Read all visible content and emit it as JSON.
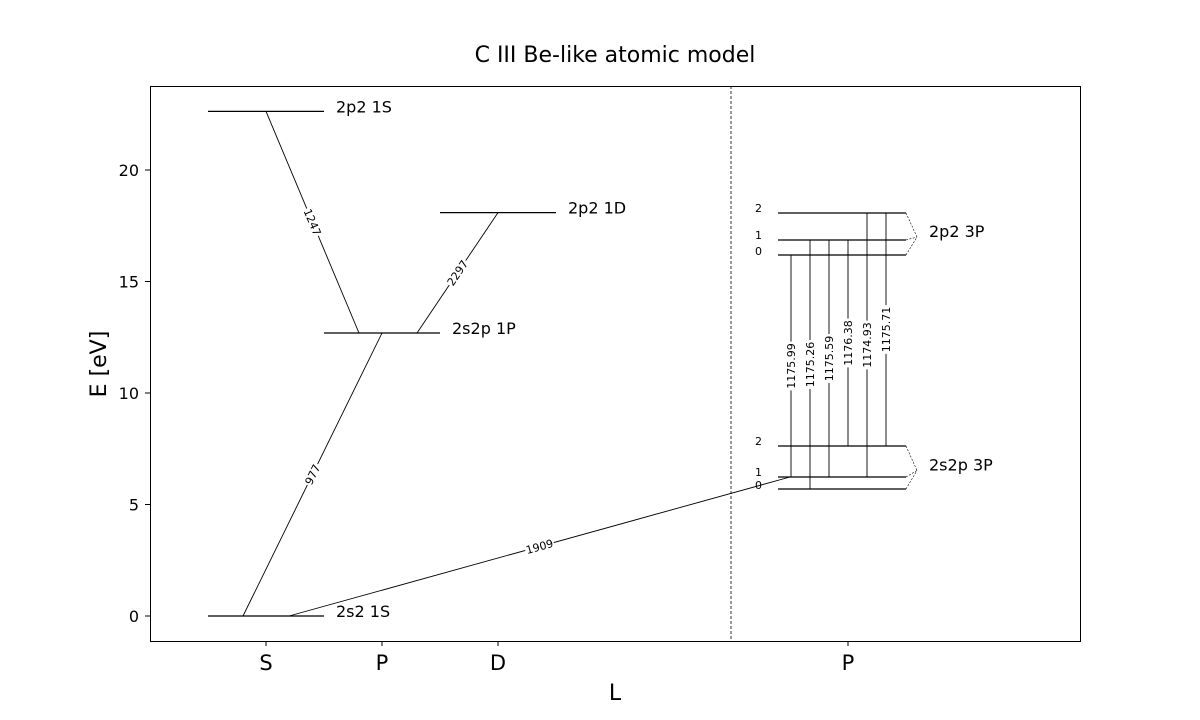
{
  "title": "C III Be-like atomic model",
  "axes": {
    "xlabel": "L",
    "ylabel": "E [eV]",
    "ylim": [
      -1.1,
      23.8
    ],
    "y_ticks": [
      0,
      5,
      10,
      15,
      20
    ],
    "y_tick_labels": [
      "0",
      "5",
      "10",
      "15",
      "20"
    ],
    "x_ticks": [
      {
        "id": "s",
        "label": "S"
      },
      {
        "id": "p",
        "label": "P"
      },
      {
        "id": "d",
        "label": "D"
      },
      {
        "id": "p2",
        "label": "P"
      }
    ],
    "separator": "dashed vertical line between singlet and triplet panels"
  },
  "chart_data": {
    "type": "energy-level-diagram",
    "singlet_levels": [
      {
        "id": "2s2_1S",
        "label": "2s2 1S",
        "L": "S",
        "energy": 0.0
      },
      {
        "id": "2s2p_1P",
        "label": "2s2p 1P",
        "L": "P",
        "energy": 12.69
      },
      {
        "id": "2p2_1D",
        "label": "2p2 1D",
        "L": "D",
        "energy": 18.09
      },
      {
        "id": "2p2_1S",
        "label": "2p2 1S",
        "L": "S",
        "energy": 22.63
      }
    ],
    "triplet_terms": [
      {
        "id": "2s2p_3P",
        "label": "2s2p 3P",
        "L": "P",
        "levels": [
          {
            "J": "0",
            "energy": 6.49
          },
          {
            "J": "1",
            "energy": 6.5
          },
          {
            "J": "2",
            "energy": 6.5
          }
        ]
      },
      {
        "id": "2p2_3P",
        "label": "2p2 3P",
        "L": "P",
        "levels": [
          {
            "J": "0",
            "energy": 17.04
          },
          {
            "J": "1",
            "energy": 17.04
          },
          {
            "J": "2",
            "energy": 17.05
          }
        ]
      }
    ],
    "singlet_transitions": [
      {
        "label": "977",
        "lower": "2s2_1S",
        "upper": "2s2p_1P"
      },
      {
        "label": "1247",
        "lower": "2s2p_1P",
        "upper": "2p2_1S"
      },
      {
        "label": "2297",
        "lower": "2s2p_1P",
        "upper": "2p2_1D"
      },
      {
        "label": "1909",
        "lower": "2s2_1S",
        "upper": "2s2p_3P"
      }
    ],
    "triplet_transitions": [
      {
        "label": "1175.99"
      },
      {
        "label": "1175.26"
      },
      {
        "label": "1175.59"
      },
      {
        "label": "1176.38"
      },
      {
        "label": "1174.93"
      },
      {
        "label": "1175.71"
      }
    ]
  }
}
